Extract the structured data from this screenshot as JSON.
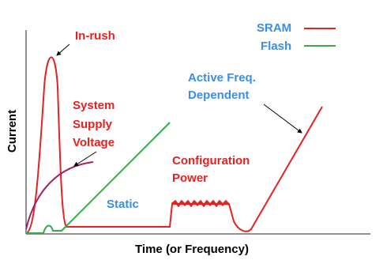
{
  "axes": {
    "y_label": "Current",
    "x_label": "Time (or Frequency)"
  },
  "legend": [
    {
      "name": "SRAM"
    },
    {
      "name": "Flash"
    }
  ],
  "annotations": {
    "inrush": "In-rush",
    "system_supply_voltage": [
      "System",
      "Supply",
      "Voltage"
    ],
    "active": [
      "Active Freq.",
      "Dependent"
    ],
    "configuration_power": [
      "Configuration",
      "Power"
    ],
    "static": "Static"
  }
}
